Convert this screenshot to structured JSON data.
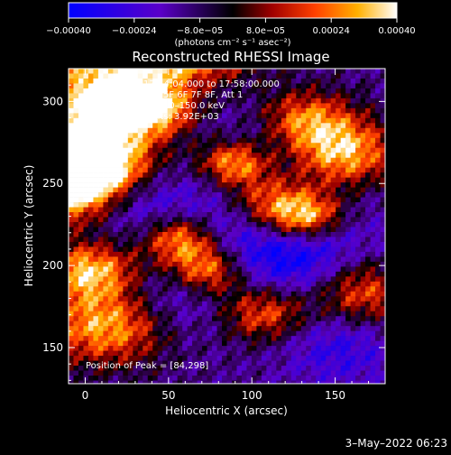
{
  "colorbar": {
    "tick_labels": [
      "−0.00040",
      "−0.00024",
      "−8.0e−05",
      "8.0e−05",
      "0.00024",
      "0.00040"
    ],
    "tick_values": [
      -0.0004,
      -0.00024,
      -8e-05,
      8e-05,
      0.00024,
      0.0004
    ],
    "range": [
      -0.0004,
      0.0004
    ],
    "units_label": "(photons cm⁻² s⁻¹ asec⁻²)",
    "colors": [
      "#0000ff",
      "#5a00c8",
      "#000000",
      "#a00000",
      "#ff4000",
      "#ffb000",
      "#ffffff"
    ]
  },
  "chart_data": {
    "type": "heatmap",
    "title": "Reconstructed RHESSI Image",
    "xlabel": "Heliocentric X (arcsec)",
    "ylabel": "Heliocentric Y (arcsec)",
    "xlim": [
      -10,
      180
    ],
    "ylim": [
      128,
      320
    ],
    "x_ticks": [
      0,
      50,
      100,
      150
    ],
    "y_ticks": [
      150,
      200,
      250,
      300
    ],
    "x_tick_labels": [
      "0",
      "50",
      "100",
      "150"
    ],
    "y_tick_labels": [
      "150",
      "200",
      "250",
      "300"
    ],
    "info_lines": [
      "4–Jul–2003 17:54:04.000 to 17:58:00.000",
      "Detectors: 3F 4F 5F 6F 7F 8F, Att 1",
      "Energy Range: 25.0–150.0 keV",
      "Clean     Total counts: 3.92E+03"
    ],
    "peak_label": "Position of Peak = [84,298]",
    "peak_position": [
      84,
      298
    ],
    "grid": false
  },
  "timestamp": "3–May–2022 06:23"
}
